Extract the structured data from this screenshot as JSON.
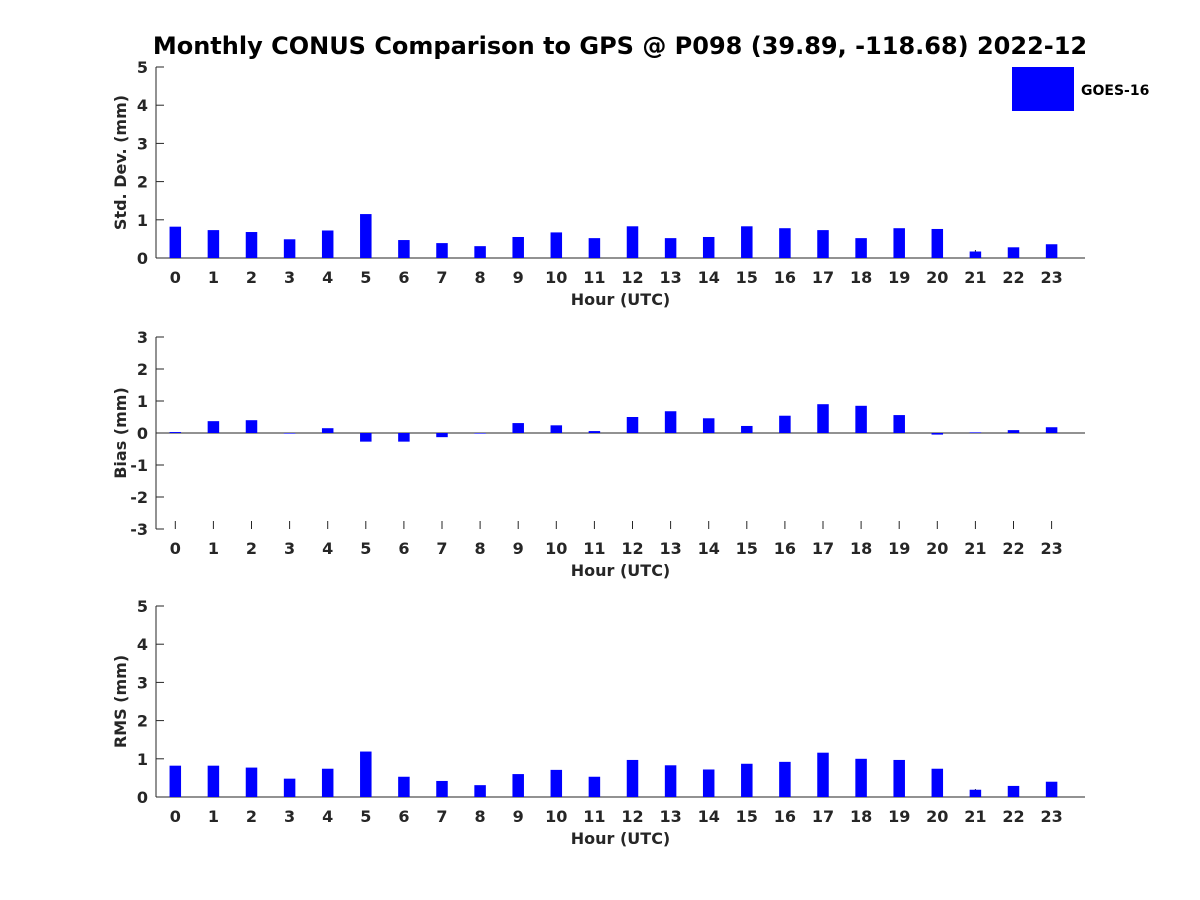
{
  "title": "Monthly CONUS Comparison to GPS @ P098 (39.89, -118.68) 2022-12",
  "colors": {
    "bar": "#0000ff",
    "axis": "#262626"
  },
  "legend": {
    "label": "GOES-16",
    "placement": "top-right"
  },
  "chart_data": [
    {
      "type": "bar",
      "title": "Monthly CONUS Comparison to GPS @ P098 (39.89, -118.68) 2022-12",
      "xlabel": "Hour (UTC)",
      "ylabel": "Std. Dev. (mm)",
      "ylim": [
        0,
        5
      ],
      "yticks": [
        0,
        1,
        2,
        3,
        4,
        5
      ],
      "categories": [
        "0",
        "1",
        "2",
        "3",
        "4",
        "5",
        "6",
        "7",
        "8",
        "9",
        "10",
        "11",
        "12",
        "13",
        "14",
        "15",
        "16",
        "17",
        "18",
        "19",
        "20",
        "21",
        "22",
        "23"
      ],
      "series": [
        {
          "name": "GOES-16",
          "values": [
            0.82,
            0.73,
            0.68,
            0.49,
            0.72,
            1.15,
            0.47,
            0.39,
            0.31,
            0.55,
            0.67,
            0.52,
            0.83,
            0.52,
            0.55,
            0.83,
            0.78,
            0.73,
            0.52,
            0.78,
            0.76,
            0.17,
            0.28,
            0.36
          ]
        }
      ]
    },
    {
      "type": "bar",
      "xlabel": "Hour (UTC)",
      "ylabel": "Bias (mm)",
      "ylim": [
        -3,
        3
      ],
      "yticks": [
        -3,
        -2,
        -1,
        0,
        1,
        2,
        3
      ],
      "categories": [
        "0",
        "1",
        "2",
        "3",
        "4",
        "5",
        "6",
        "7",
        "8",
        "9",
        "10",
        "11",
        "12",
        "13",
        "14",
        "15",
        "16",
        "17",
        "18",
        "19",
        "20",
        "21",
        "22",
        "23"
      ],
      "series": [
        {
          "name": "GOES-16",
          "values": [
            0.03,
            0.37,
            0.4,
            0.0,
            0.15,
            -0.27,
            -0.27,
            -0.13,
            -0.01,
            0.31,
            0.24,
            0.06,
            0.5,
            0.68,
            0.46,
            0.22,
            0.54,
            0.9,
            0.85,
            0.56,
            -0.05,
            0.02,
            0.09,
            0.18
          ]
        }
      ]
    },
    {
      "type": "bar",
      "xlabel": "Hour (UTC)",
      "ylabel": "RMS (mm)",
      "ylim": [
        0,
        5
      ],
      "yticks": [
        0,
        1,
        2,
        3,
        4,
        5
      ],
      "categories": [
        "0",
        "1",
        "2",
        "3",
        "4",
        "5",
        "6",
        "7",
        "8",
        "9",
        "10",
        "11",
        "12",
        "13",
        "14",
        "15",
        "16",
        "17",
        "18",
        "19",
        "20",
        "21",
        "22",
        "23"
      ],
      "series": [
        {
          "name": "GOES-16",
          "values": [
            0.82,
            0.82,
            0.77,
            0.48,
            0.74,
            1.19,
            0.53,
            0.42,
            0.31,
            0.6,
            0.71,
            0.53,
            0.97,
            0.83,
            0.72,
            0.87,
            0.92,
            1.16,
            1.0,
            0.97,
            0.74,
            0.19,
            0.29,
            0.4
          ]
        }
      ]
    }
  ]
}
